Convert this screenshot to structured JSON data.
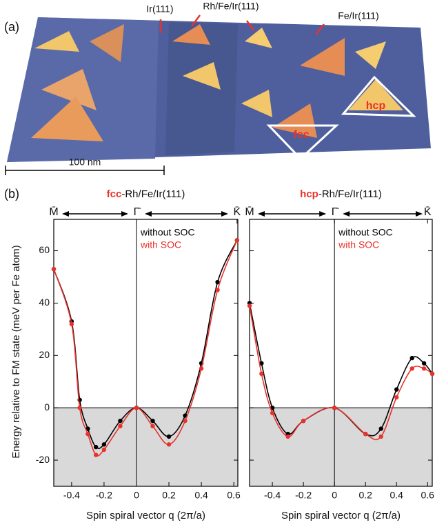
{
  "panel_a": {
    "label": "(a)",
    "annotations": [
      "Ir(111)",
      "Rh/Fe/Ir(111)",
      "Fe/Ir(111)"
    ],
    "hcp": "hcp",
    "fcc": "fcc",
    "scale_bar": "100 nm"
  },
  "panel_b": {
    "label": "(b)",
    "ylabel": "Energy relative to FM state (meV per Fe atom)"
  },
  "chart_data": [
    {
      "type": "line",
      "title_parts": [
        "fcc",
        "-Rh/Fe/Ir(111)"
      ],
      "xlabel": "Spin spiral vector q (2π/a)",
      "xlim": [
        -0.51,
        0.625
      ],
      "ylim": [
        -30,
        72
      ],
      "xticks": [
        -0.4,
        -0.2,
        0,
        0.2,
        0.4,
        0.6
      ],
      "yticks": [
        -20,
        0,
        20,
        40,
        60
      ],
      "top_ticks": [
        {
          "value": -0.51,
          "label": "M̄"
        },
        {
          "value": 0,
          "label": "Γ̄"
        },
        {
          "value": 0.62,
          "label": "K̄"
        }
      ],
      "x": [
        -0.51,
        -0.4,
        -0.35,
        -0.3,
        -0.25,
        -0.2,
        -0.1,
        0,
        0.1,
        0.2,
        0.3,
        0.4,
        0.5,
        0.62
      ],
      "series": [
        {
          "name": "without SOC",
          "color": "#000000",
          "values": [
            53,
            33,
            3,
            -8,
            -15,
            -14,
            -5,
            0,
            -5,
            -11,
            -3,
            17,
            48,
            64
          ]
        },
        {
          "name": "with SOC",
          "color": "#e8322b",
          "values": [
            53,
            32,
            0,
            -10,
            -18,
            -16,
            -7,
            0,
            -7,
            -14,
            -5,
            15,
            45,
            64
          ]
        }
      ]
    },
    {
      "type": "line",
      "title_parts": [
        "hcp",
        "-Rh/Fe/Ir(111)"
      ],
      "xlabel": "Spin spiral vector q (2π/a)",
      "xlim": [
        -0.547,
        0.63
      ],
      "ylim": [
        -30,
        72
      ],
      "xticks": [
        -0.4,
        -0.2,
        0,
        0.2,
        0.4,
        0.6
      ],
      "yticks": [
        -20,
        0,
        20,
        40,
        60
      ],
      "top_ticks": [
        {
          "value": -0.547,
          "label": "M̄"
        },
        {
          "value": 0,
          "label": "Γ̄"
        },
        {
          "value": 0.6,
          "label": "K̄"
        }
      ],
      "x": [
        -0.547,
        -0.47,
        -0.4,
        -0.3,
        -0.2,
        0,
        0.2,
        0.3,
        0.4,
        0.5,
        0.577,
        0.63
      ],
      "series": [
        {
          "name": "without SOC",
          "color": "#000000",
          "values": [
            40,
            17,
            0,
            -10,
            -5,
            0,
            -10,
            -8,
            7,
            19,
            17,
            13
          ]
        },
        {
          "name": "with SOC",
          "color": "#e8322b",
          "values": [
            39,
            13,
            -2,
            -11,
            -5,
            0,
            -10,
            -11,
            4,
            15,
            15,
            13
          ]
        }
      ]
    }
  ]
}
